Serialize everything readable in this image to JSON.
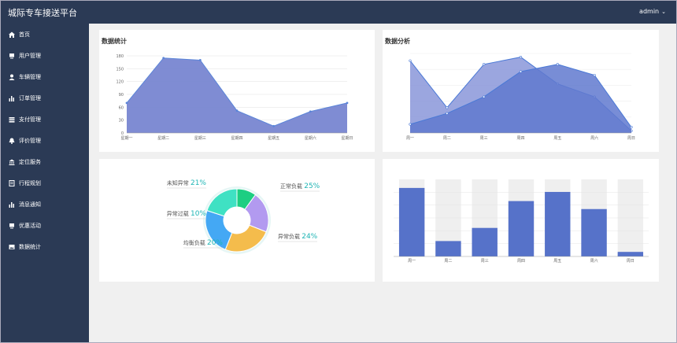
{
  "header": {
    "app_title": "城际专车接送平台",
    "user": "admin",
    "user_icon": "chevron-down-icon"
  },
  "sidebar": {
    "items": [
      {
        "label": "首页",
        "icon": "home-icon"
      },
      {
        "label": "用户管理",
        "icon": "monitor-icon"
      },
      {
        "label": "车辆管理",
        "icon": "user-icon"
      },
      {
        "label": "订单管理",
        "icon": "bar-chart-icon"
      },
      {
        "label": "支付管理",
        "icon": "table-icon"
      },
      {
        "label": "评价管理",
        "icon": "bell-icon"
      },
      {
        "label": "定位服务",
        "icon": "bank-icon"
      },
      {
        "label": "行程规划",
        "icon": "document-icon"
      },
      {
        "label": "消息通知",
        "icon": "bar-chart-icon"
      },
      {
        "label": "优惠活动",
        "icon": "monitor-icon"
      },
      {
        "label": "数据统计",
        "icon": "image-icon"
      }
    ]
  },
  "cards": {
    "stats_title": "数据统计",
    "analysis_title": "数据分析"
  },
  "colors": {
    "sidebar": "#2b3a55",
    "area": "#7886d1",
    "bar": "#5672c9",
    "line": "#5b85d8"
  },
  "chart_data": [
    {
      "type": "area",
      "title": "数据统计",
      "categories": [
        "星期一",
        "星期二",
        "星期三",
        "星期四",
        "星期五",
        "星期六",
        "星期日"
      ],
      "y_ticks": [
        "0",
        "30",
        "60",
        "90",
        "120",
        "150",
        "180"
      ],
      "ylim": [
        0,
        180
      ],
      "grid": true,
      "values": [
        70,
        175,
        170,
        52,
        16,
        50,
        70
      ]
    },
    {
      "type": "area",
      "title": "数据分析",
      "categories": [
        "周一",
        "周二",
        "周三",
        "周四",
        "周五",
        "周六",
        "周日"
      ],
      "ylim": [
        0,
        110
      ],
      "grid": true,
      "series": [
        {
          "values": [
            100,
            35,
            95,
            105,
            68,
            50,
            3
          ]
        },
        {
          "values": [
            12,
            27,
            50,
            85,
            95,
            80,
            8
          ]
        }
      ]
    },
    {
      "type": "pie",
      "slices": [
        {
          "label": "未知异常",
          "value": 21,
          "text": "21%",
          "color": "#b29af0"
        },
        {
          "label": "正常负载",
          "value": 25,
          "text": "25%",
          "color": "#f4bc4c"
        },
        {
          "label": "异常负载",
          "value": 24,
          "text": "24%",
          "color": "#44a8f4"
        },
        {
          "label": "均衡负载",
          "value": 20,
          "text": "20%",
          "color": "#3fe1c3"
        },
        {
          "label": "异常过载",
          "value": 10,
          "text": "10%",
          "color": "#1dce82"
        }
      ]
    },
    {
      "type": "bar",
      "categories": [
        "周一",
        "周二",
        "周三",
        "周四",
        "周五",
        "周六",
        "周日"
      ],
      "values": [
        120,
        27,
        50,
        97,
        113,
        83,
        8
      ],
      "ylim": [
        0,
        135
      ],
      "background_bars": true
    }
  ]
}
